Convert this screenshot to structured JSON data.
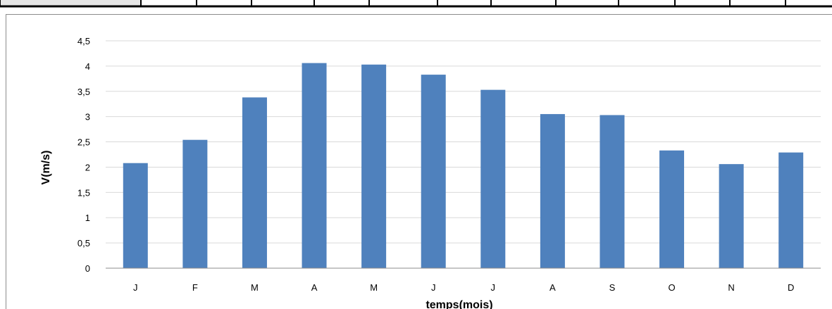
{
  "chart_data": {
    "type": "bar",
    "categories": [
      "J",
      "F",
      "M",
      "A",
      "M",
      "J",
      "J",
      "A",
      "S",
      "O",
      "N",
      "D"
    ],
    "values": [
      2.08,
      2.54,
      3.38,
      4.06,
      4.03,
      3.83,
      3.53,
      3.05,
      3.03,
      2.33,
      2.06,
      2.29
    ],
    "xlabel": "temps(mois)",
    "ylabel": "V(m/s)",
    "ylim": [
      0,
      4.5
    ],
    "yticks": [
      "0",
      "0,5",
      "1",
      "1,5",
      "2",
      "2,5",
      "3",
      "3,5",
      "4",
      "4,5"
    ],
    "grid": true,
    "legend": "none",
    "bar_color": "#4f81bd",
    "grid_color": "#d9d9d9"
  }
}
